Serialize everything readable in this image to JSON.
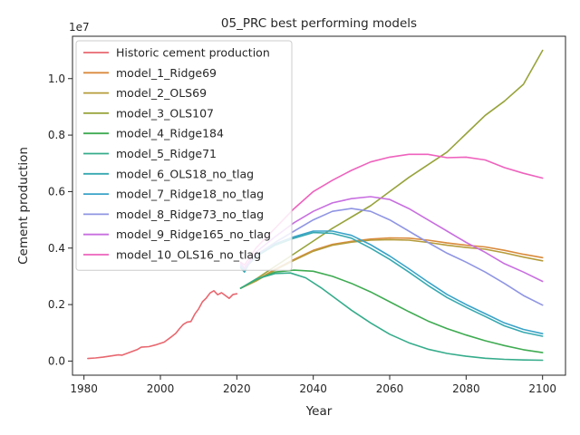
{
  "chart_data": {
    "type": "line",
    "title": "05_PRC best performing models",
    "xlabel": "Year",
    "ylabel": "Cement production",
    "y_offset_text": "1e7",
    "xlim": [
      1977,
      2106
    ],
    "ylim": [
      -0.05,
      1.15
    ],
    "y_scale_multiplier": 10000000,
    "x_ticks": [
      1980,
      2000,
      2020,
      2040,
      2060,
      2080,
      2100
    ],
    "y_ticks": [
      0.0,
      0.2,
      0.4,
      0.6,
      0.8,
      1.0
    ],
    "y_tick_labels": [
      "0.0",
      "0.2",
      "0.4",
      "0.6",
      "0.8",
      "1.0"
    ],
    "grid": false,
    "legend_position": "upper-left",
    "series": [
      {
        "name": "Historic cement production",
        "color": "#e8676f",
        "points": [
          [
            1981,
            0.009
          ],
          [
            1983,
            0.011
          ],
          [
            1985,
            0.014
          ],
          [
            1987,
            0.018
          ],
          [
            1989,
            0.022
          ],
          [
            1990,
            0.021
          ],
          [
            1992,
            0.031
          ],
          [
            1994,
            0.041
          ],
          [
            1995,
            0.049
          ],
          [
            1997,
            0.051
          ],
          [
            1999,
            0.058
          ],
          [
            2001,
            0.067
          ],
          [
            2003,
            0.087
          ],
          [
            2004,
            0.098
          ],
          [
            2005,
            0.115
          ],
          [
            2006,
            0.13
          ],
          [
            2007,
            0.138
          ],
          [
            2008,
            0.14
          ],
          [
            2009,
            0.166
          ],
          [
            2010,
            0.185
          ],
          [
            2011,
            0.21
          ],
          [
            2012,
            0.223
          ],
          [
            2013,
            0.241
          ],
          [
            2014,
            0.249
          ],
          [
            2015,
            0.235
          ],
          [
            2016,
            0.242
          ],
          [
            2017,
            0.232
          ],
          [
            2018,
            0.222
          ],
          [
            2019,
            0.236
          ],
          [
            2020,
            0.238
          ]
        ]
      },
      {
        "name": "model_1_Ridge69",
        "color": "#d98a3c",
        "points": [
          [
            2021,
            0.258
          ],
          [
            2025,
            0.285
          ],
          [
            2030,
            0.325
          ],
          [
            2035,
            0.36
          ],
          [
            2040,
            0.392
          ],
          [
            2045,
            0.413
          ],
          [
            2050,
            0.424
          ],
          [
            2055,
            0.432
          ],
          [
            2060,
            0.436
          ],
          [
            2065,
            0.435
          ],
          [
            2070,
            0.428
          ],
          [
            2075,
            0.418
          ],
          [
            2080,
            0.41
          ],
          [
            2085,
            0.404
          ],
          [
            2090,
            0.392
          ],
          [
            2095,
            0.378
          ],
          [
            2100,
            0.366
          ]
        ]
      },
      {
        "name": "model_2_OLS69",
        "color": "#b59c3a",
        "points": [
          [
            2021,
            0.258
          ],
          [
            2025,
            0.283
          ],
          [
            2030,
            0.322
          ],
          [
            2035,
            0.357
          ],
          [
            2040,
            0.389
          ],
          [
            2045,
            0.41
          ],
          [
            2050,
            0.421
          ],
          [
            2055,
            0.428
          ],
          [
            2060,
            0.43
          ],
          [
            2065,
            0.428
          ],
          [
            2070,
            0.42
          ],
          [
            2075,
            0.41
          ],
          [
            2080,
            0.402
          ],
          [
            2085,
            0.396
          ],
          [
            2090,
            0.383
          ],
          [
            2095,
            0.368
          ],
          [
            2100,
            0.355
          ]
        ]
      },
      {
        "name": "model_3_OLS107",
        "color": "#97a33a",
        "points": [
          [
            2021,
            0.258
          ],
          [
            2025,
            0.29
          ],
          [
            2030,
            0.335
          ],
          [
            2035,
            0.38
          ],
          [
            2040,
            0.425
          ],
          [
            2045,
            0.47
          ],
          [
            2050,
            0.51
          ],
          [
            2055,
            0.55
          ],
          [
            2060,
            0.6
          ],
          [
            2065,
            0.65
          ],
          [
            2070,
            0.695
          ],
          [
            2075,
            0.74
          ],
          [
            2080,
            0.805
          ],
          [
            2085,
            0.87
          ],
          [
            2090,
            0.92
          ],
          [
            2095,
            0.98
          ],
          [
            2100,
            1.1
          ]
        ]
      },
      {
        "name": "model_4_Ridge184",
        "color": "#3fab52",
        "points": [
          [
            2021,
            0.258
          ],
          [
            2025,
            0.288
          ],
          [
            2030,
            0.315
          ],
          [
            2035,
            0.322
          ],
          [
            2040,
            0.318
          ],
          [
            2045,
            0.3
          ],
          [
            2050,
            0.275
          ],
          [
            2055,
            0.245
          ],
          [
            2060,
            0.21
          ],
          [
            2065,
            0.175
          ],
          [
            2070,
            0.142
          ],
          [
            2075,
            0.115
          ],
          [
            2080,
            0.092
          ],
          [
            2085,
            0.072
          ],
          [
            2090,
            0.055
          ],
          [
            2095,
            0.04
          ],
          [
            2100,
            0.03
          ]
        ]
      },
      {
        "name": "model_5_Ridge71",
        "color": "#35ac8b",
        "points": [
          [
            2021,
            0.258
          ],
          [
            2025,
            0.29
          ],
          [
            2030,
            0.31
          ],
          [
            2034,
            0.312
          ],
          [
            2038,
            0.295
          ],
          [
            2042,
            0.26
          ],
          [
            2046,
            0.22
          ],
          [
            2050,
            0.18
          ],
          [
            2055,
            0.135
          ],
          [
            2060,
            0.095
          ],
          [
            2065,
            0.065
          ],
          [
            2070,
            0.042
          ],
          [
            2075,
            0.027
          ],
          [
            2080,
            0.017
          ],
          [
            2085,
            0.01
          ],
          [
            2090,
            0.006
          ],
          [
            2095,
            0.004
          ],
          [
            2100,
            0.003
          ]
        ]
      },
      {
        "name": "model_6_OLS18_no_tlag",
        "color": "#36a9b0",
        "points": [
          [
            2021,
            0.33
          ],
          [
            2022,
            0.315
          ],
          [
            2023,
            0.34
          ],
          [
            2025,
            0.37
          ],
          [
            2030,
            0.41
          ],
          [
            2035,
            0.435
          ],
          [
            2040,
            0.455
          ],
          [
            2045,
            0.452
          ],
          [
            2050,
            0.435
          ],
          [
            2055,
            0.4
          ],
          [
            2060,
            0.36
          ],
          [
            2065,
            0.315
          ],
          [
            2070,
            0.268
          ],
          [
            2075,
            0.225
          ],
          [
            2080,
            0.19
          ],
          [
            2085,
            0.158
          ],
          [
            2090,
            0.125
          ],
          [
            2095,
            0.102
          ],
          [
            2100,
            0.088
          ]
        ]
      },
      {
        "name": "model_7_Ridge18_no_tlag",
        "color": "#3aa3c8",
        "points": [
          [
            2021,
            0.335
          ],
          [
            2022,
            0.32
          ],
          [
            2023,
            0.345
          ],
          [
            2025,
            0.375
          ],
          [
            2030,
            0.415
          ],
          [
            2035,
            0.44
          ],
          [
            2040,
            0.46
          ],
          [
            2045,
            0.46
          ],
          [
            2050,
            0.445
          ],
          [
            2055,
            0.412
          ],
          [
            2060,
            0.372
          ],
          [
            2065,
            0.327
          ],
          [
            2070,
            0.28
          ],
          [
            2075,
            0.236
          ],
          [
            2080,
            0.2
          ],
          [
            2085,
            0.168
          ],
          [
            2090,
            0.135
          ],
          [
            2095,
            0.112
          ],
          [
            2100,
            0.097
          ]
        ]
      },
      {
        "name": "model_8_Ridge73_no_tlag",
        "color": "#8f95e3",
        "points": [
          [
            2021,
            0.34
          ],
          [
            2022,
            0.325
          ],
          [
            2025,
            0.375
          ],
          [
            2030,
            0.42
          ],
          [
            2035,
            0.46
          ],
          [
            2040,
            0.5
          ],
          [
            2045,
            0.53
          ],
          [
            2050,
            0.54
          ],
          [
            2055,
            0.53
          ],
          [
            2060,
            0.5
          ],
          [
            2065,
            0.46
          ],
          [
            2070,
            0.42
          ],
          [
            2075,
            0.382
          ],
          [
            2080,
            0.35
          ],
          [
            2085,
            0.315
          ],
          [
            2090,
            0.275
          ],
          [
            2095,
            0.232
          ],
          [
            2100,
            0.198
          ]
        ]
      },
      {
        "name": "model_9_Ridge165_no_tlag",
        "color": "#c86fe0",
        "points": [
          [
            2021,
            0.345
          ],
          [
            2022,
            0.33
          ],
          [
            2025,
            0.385
          ],
          [
            2030,
            0.44
          ],
          [
            2035,
            0.49
          ],
          [
            2040,
            0.53
          ],
          [
            2045,
            0.56
          ],
          [
            2050,
            0.575
          ],
          [
            2055,
            0.582
          ],
          [
            2060,
            0.572
          ],
          [
            2065,
            0.54
          ],
          [
            2070,
            0.5
          ],
          [
            2075,
            0.46
          ],
          [
            2080,
            0.42
          ],
          [
            2085,
            0.385
          ],
          [
            2090,
            0.345
          ],
          [
            2095,
            0.315
          ],
          [
            2100,
            0.282
          ]
        ]
      },
      {
        "name": "model_10_OLS16_no_tlag",
        "color": "#ee62bd",
        "points": [
          [
            2021,
            0.35
          ],
          [
            2022,
            0.34
          ],
          [
            2025,
            0.4
          ],
          [
            2030,
            0.47
          ],
          [
            2035,
            0.54
          ],
          [
            2040,
            0.6
          ],
          [
            2045,
            0.64
          ],
          [
            2050,
            0.675
          ],
          [
            2055,
            0.705
          ],
          [
            2060,
            0.722
          ],
          [
            2065,
            0.732
          ],
          [
            2070,
            0.732
          ],
          [
            2075,
            0.72
          ],
          [
            2080,
            0.722
          ],
          [
            2085,
            0.712
          ],
          [
            2090,
            0.685
          ],
          [
            2095,
            0.665
          ],
          [
            2100,
            0.648
          ]
        ]
      }
    ]
  }
}
